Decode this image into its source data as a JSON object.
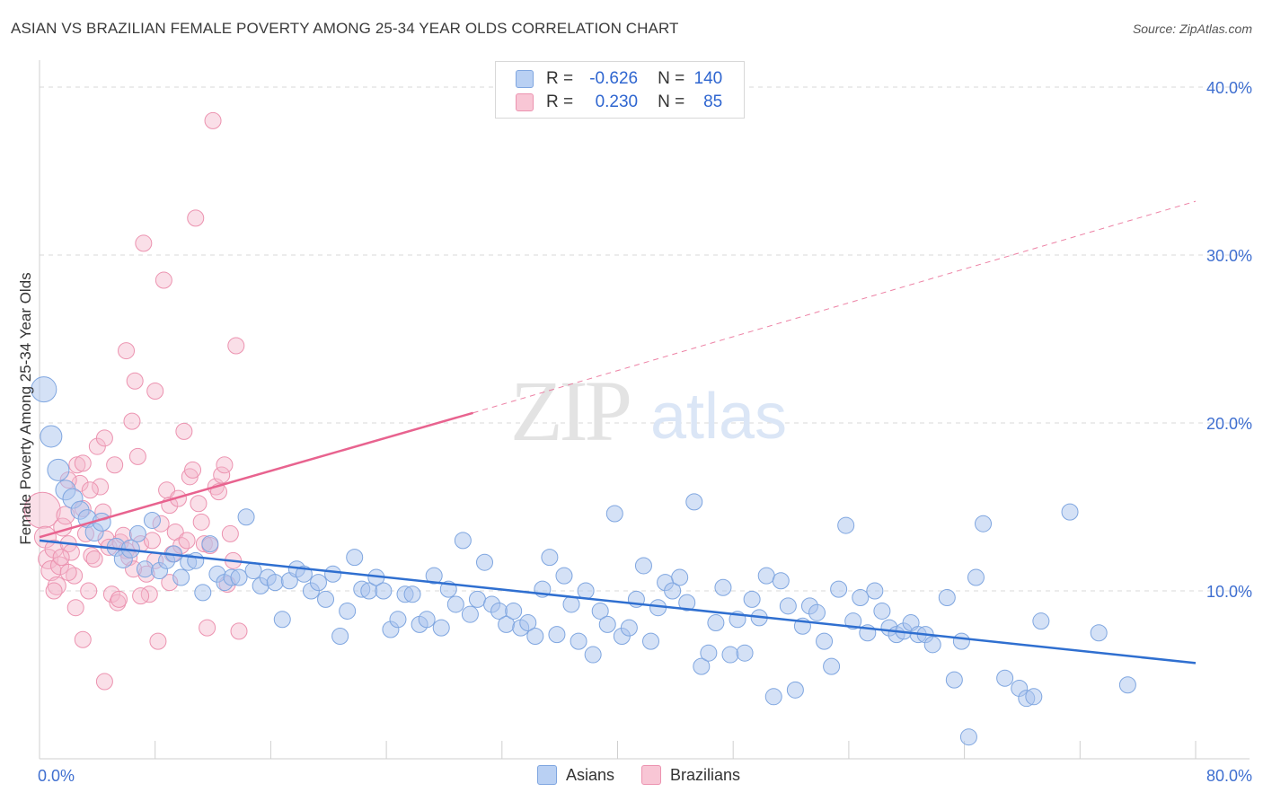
{
  "title": "ASIAN VS BRAZILIAN FEMALE POVERTY AMONG 25-34 YEAR OLDS CORRELATION CHART",
  "source": "Source: ZipAtlas.com",
  "watermark": {
    "zip": "ZIP",
    "atlas": "atlas"
  },
  "legend_top": {
    "asians": {
      "r_label": "R =",
      "r_value": "-0.626",
      "n_label": "N =",
      "n_value": "140"
    },
    "brazilians": {
      "r_label": "R =",
      "r_value": "0.230",
      "n_label": "N =",
      "n_value": "85"
    }
  },
  "legend_bottom": {
    "asians": "Asians",
    "brazilians": "Brazilians"
  },
  "colors": {
    "asian_fill": "#a9c4ee",
    "asian_stroke": "#7fa6e0",
    "asian_line": "#2f6fd0",
    "brazil_fill": "#f5b8cb",
    "brazil_stroke": "#ec93b0",
    "brazil_line": "#e8638f",
    "grid": "#d9d9d9",
    "tick_label": "#3f6fd0"
  },
  "chart_data": {
    "type": "scatter",
    "ylabel": "Female Poverty Among 25-34 Year Olds",
    "xlim": [
      0,
      80
    ],
    "ylim": [
      0,
      40
    ],
    "x_tick_labels": [
      "0.0%",
      "80.0%"
    ],
    "y_ticks": [
      10,
      20,
      30,
      40
    ],
    "y_tick_labels": [
      "10.0%",
      "20.0%",
      "30.0%",
      "40.0%"
    ],
    "grid": "horizontal dashed",
    "series": [
      {
        "name": "Asians",
        "r": -0.626,
        "n": 140,
        "trend": {
          "x": [
            0,
            80
          ],
          "y": [
            13.0,
            5.7
          ],
          "style": "solid"
        },
        "points": [
          [
            0.3,
            22.0,
            14
          ],
          [
            0.8,
            19.2,
            12
          ],
          [
            1.3,
            17.2,
            12
          ],
          [
            1.8,
            16.0,
            11
          ],
          [
            2.3,
            15.5,
            11
          ],
          [
            2.8,
            14.8,
            10
          ],
          [
            3.3,
            14.3,
            10
          ],
          [
            3.8,
            13.5,
            10
          ],
          [
            4.3,
            14.1,
            10
          ],
          [
            5.3,
            12.6,
            10
          ],
          [
            5.8,
            11.9,
            10
          ],
          [
            6.3,
            12.5,
            10
          ],
          [
            6.8,
            13.4,
            9
          ],
          [
            7.3,
            11.3,
            9
          ],
          [
            7.8,
            14.2,
            9
          ],
          [
            8.3,
            11.2,
            9
          ],
          [
            8.8,
            11.8,
            9
          ],
          [
            9.3,
            12.2,
            9
          ],
          [
            9.8,
            10.8,
            9
          ],
          [
            10.3,
            11.7,
            9
          ],
          [
            10.8,
            11.8,
            9
          ],
          [
            11.3,
            9.9,
            9
          ],
          [
            11.8,
            12.8,
            9
          ],
          [
            12.3,
            11.0,
            9
          ],
          [
            12.8,
            10.5,
            9
          ],
          [
            13.3,
            10.8,
            9
          ],
          [
            13.8,
            10.8,
            9
          ],
          [
            14.3,
            14.4,
            9
          ],
          [
            14.8,
            11.2,
            9
          ],
          [
            15.3,
            10.3,
            9
          ],
          [
            15.8,
            10.8,
            9
          ],
          [
            16.3,
            10.5,
            9
          ],
          [
            16.8,
            8.3,
            9
          ],
          [
            17.3,
            10.6,
            9
          ],
          [
            17.8,
            11.3,
            9
          ],
          [
            18.3,
            11.0,
            9
          ],
          [
            18.8,
            10.0,
            9
          ],
          [
            19.3,
            10.5,
            9
          ],
          [
            19.8,
            9.5,
            9
          ],
          [
            20.3,
            11.0,
            9
          ],
          [
            20.8,
            7.3,
            9
          ],
          [
            21.3,
            8.8,
            9
          ],
          [
            21.8,
            12.0,
            9
          ],
          [
            22.3,
            10.1,
            9
          ],
          [
            22.8,
            10.0,
            9
          ],
          [
            23.3,
            10.8,
            9
          ],
          [
            23.8,
            10.0,
            9
          ],
          [
            24.3,
            7.7,
            9
          ],
          [
            24.8,
            8.3,
            9
          ],
          [
            25.3,
            9.8,
            9
          ],
          [
            25.8,
            9.8,
            9
          ],
          [
            26.3,
            8.0,
            9
          ],
          [
            26.8,
            8.3,
            9
          ],
          [
            27.3,
            10.9,
            9
          ],
          [
            27.8,
            7.8,
            9
          ],
          [
            28.3,
            10.1,
            9
          ],
          [
            28.8,
            9.2,
            9
          ],
          [
            29.3,
            13.0,
            9
          ],
          [
            29.8,
            8.6,
            9
          ],
          [
            30.3,
            9.5,
            9
          ],
          [
            30.8,
            11.7,
            9
          ],
          [
            31.3,
            9.2,
            9
          ],
          [
            31.8,
            8.8,
            9
          ],
          [
            32.3,
            8.0,
            9
          ],
          [
            32.8,
            8.8,
            9
          ],
          [
            33.3,
            7.8,
            9
          ],
          [
            33.8,
            8.1,
            9
          ],
          [
            34.3,
            7.3,
            9
          ],
          [
            34.8,
            10.1,
            9
          ],
          [
            35.3,
            12.0,
            9
          ],
          [
            35.8,
            7.4,
            9
          ],
          [
            36.3,
            10.9,
            9
          ],
          [
            36.8,
            9.2,
            9
          ],
          [
            37.3,
            7.0,
            9
          ],
          [
            37.8,
            10.0,
            9
          ],
          [
            38.3,
            6.2,
            9
          ],
          [
            38.8,
            8.8,
            9
          ],
          [
            39.3,
            8.0,
            9
          ],
          [
            39.8,
            14.6,
            9
          ],
          [
            40.3,
            7.3,
            9
          ],
          [
            40.8,
            7.8,
            9
          ],
          [
            41.3,
            9.5,
            9
          ],
          [
            41.8,
            11.5,
            9
          ],
          [
            42.3,
            7.0,
            9
          ],
          [
            42.8,
            9.0,
            9
          ],
          [
            43.3,
            10.5,
            9
          ],
          [
            43.8,
            10.0,
            9
          ],
          [
            44.3,
            10.8,
            9
          ],
          [
            44.8,
            9.3,
            9
          ],
          [
            45.3,
            15.3,
            9
          ],
          [
            45.8,
            5.5,
            9
          ],
          [
            46.3,
            6.3,
            9
          ],
          [
            46.8,
            8.1,
            9
          ],
          [
            47.3,
            10.2,
            9
          ],
          [
            47.8,
            6.2,
            9
          ],
          [
            48.3,
            8.3,
            9
          ],
          [
            48.8,
            6.3,
            9
          ],
          [
            49.3,
            9.5,
            9
          ],
          [
            49.8,
            8.4,
            9
          ],
          [
            50.3,
            10.9,
            9
          ],
          [
            50.8,
            3.7,
            9
          ],
          [
            51.3,
            10.6,
            9
          ],
          [
            51.8,
            9.1,
            9
          ],
          [
            52.3,
            4.1,
            9
          ],
          [
            52.8,
            7.9,
            9
          ],
          [
            53.3,
            9.1,
            9
          ],
          [
            53.8,
            8.7,
            9
          ],
          [
            54.3,
            7.0,
            9
          ],
          [
            54.8,
            5.5,
            9
          ],
          [
            55.3,
            10.1,
            9
          ],
          [
            55.8,
            13.9,
            9
          ],
          [
            56.3,
            8.2,
            9
          ],
          [
            56.8,
            9.6,
            9
          ],
          [
            57.3,
            7.5,
            9
          ],
          [
            57.8,
            10.0,
            9
          ],
          [
            58.3,
            8.8,
            9
          ],
          [
            58.8,
            7.8,
            9
          ],
          [
            59.3,
            7.4,
            9
          ],
          [
            59.8,
            7.6,
            9
          ],
          [
            60.3,
            8.1,
            9
          ],
          [
            60.8,
            7.4,
            9
          ],
          [
            61.3,
            7.4,
            9
          ],
          [
            61.8,
            6.8,
            9
          ],
          [
            62.8,
            9.6,
            9
          ],
          [
            63.3,
            4.7,
            9
          ],
          [
            63.8,
            7.0,
            9
          ],
          [
            64.3,
            1.3,
            9
          ],
          [
            64.8,
            10.8,
            9
          ],
          [
            65.3,
            14.0,
            9
          ],
          [
            66.8,
            4.8,
            9
          ],
          [
            67.8,
            4.2,
            9
          ],
          [
            68.3,
            3.6,
            9
          ],
          [
            68.8,
            3.7,
            9
          ],
          [
            69.3,
            8.2,
            9
          ],
          [
            71.3,
            14.7,
            9
          ],
          [
            73.3,
            7.5,
            9
          ],
          [
            75.3,
            4.4,
            9
          ]
        ]
      },
      {
        "name": "Brazilians",
        "r": 0.23,
        "n": 85,
        "trend": {
          "x": [
            0,
            30
          ],
          "y": [
            13.2,
            20.6
          ],
          "style": "solid",
          "dashed_extension_to": [
            80,
            33.2
          ]
        },
        "points": [
          [
            0.2,
            14.8,
            20
          ],
          [
            0.4,
            13.2,
            12
          ],
          [
            0.6,
            11.9,
            11
          ],
          [
            0.8,
            11.2,
            11
          ],
          [
            1.0,
            12.5,
            10
          ],
          [
            1.2,
            10.3,
            10
          ],
          [
            1.4,
            11.5,
            10
          ],
          [
            1.6,
            13.8,
            10
          ],
          [
            1.8,
            14.5,
            10
          ],
          [
            2.0,
            12.8,
            9
          ],
          [
            2.2,
            12.3,
            9
          ],
          [
            2.4,
            10.9,
            9
          ],
          [
            2.6,
            17.5,
            9
          ],
          [
            2.8,
            16.4,
            9
          ],
          [
            3.0,
            14.9,
            9
          ],
          [
            3.2,
            13.4,
            9
          ],
          [
            3.4,
            10.0,
            9
          ],
          [
            3.6,
            12.1,
            9
          ],
          [
            3.8,
            11.9,
            9
          ],
          [
            4.0,
            18.6,
            9
          ],
          [
            4.2,
            16.2,
            9
          ],
          [
            4.4,
            14.7,
            9
          ],
          [
            4.6,
            13.1,
            9
          ],
          [
            4.8,
            12.6,
            9
          ],
          [
            5.0,
            9.8,
            9
          ],
          [
            5.2,
            17.5,
            9
          ],
          [
            5.4,
            9.3,
            9
          ],
          [
            5.6,
            12.9,
            9
          ],
          [
            5.8,
            13.3,
            9
          ],
          [
            6.0,
            12.4,
            9
          ],
          [
            6.2,
            12.0,
            9
          ],
          [
            6.4,
            20.1,
            9
          ],
          [
            6.6,
            22.5,
            9
          ],
          [
            6.8,
            18.0,
            9
          ],
          [
            7.0,
            12.8,
            9
          ],
          [
            7.2,
            30.7,
            9
          ],
          [
            7.4,
            11.0,
            9
          ],
          [
            7.6,
            9.8,
            9
          ],
          [
            7.8,
            13.0,
            9
          ],
          [
            8.0,
            21.9,
            9
          ],
          [
            8.2,
            7.0,
            9
          ],
          [
            8.4,
            14.0,
            9
          ],
          [
            8.6,
            28.5,
            9
          ],
          [
            8.8,
            16.0,
            9
          ],
          [
            9.0,
            15.1,
            9
          ],
          [
            9.2,
            12.2,
            9
          ],
          [
            9.4,
            13.5,
            9
          ],
          [
            9.6,
            15.5,
            9
          ],
          [
            9.8,
            12.7,
            9
          ],
          [
            10.0,
            19.5,
            9
          ],
          [
            10.2,
            13.0,
            9
          ],
          [
            10.4,
            16.8,
            9
          ],
          [
            10.6,
            17.2,
            9
          ],
          [
            10.8,
            32.2,
            9
          ],
          [
            11.0,
            15.2,
            9
          ],
          [
            11.2,
            14.1,
            9
          ],
          [
            11.4,
            12.8,
            9
          ],
          [
            11.6,
            7.8,
            9
          ],
          [
            11.8,
            12.7,
            9
          ],
          [
            12.0,
            38.0,
            9
          ],
          [
            12.2,
            16.2,
            9
          ],
          [
            12.4,
            15.9,
            9
          ],
          [
            12.6,
            16.9,
            9
          ],
          [
            12.8,
            17.5,
            9
          ],
          [
            13.0,
            10.4,
            9
          ],
          [
            13.2,
            13.4,
            9
          ],
          [
            13.4,
            11.8,
            9
          ],
          [
            13.6,
            24.6,
            9
          ],
          [
            13.8,
            7.6,
            9
          ],
          [
            2.0,
            11.1,
            9
          ],
          [
            2.5,
            9.0,
            9
          ],
          [
            3.0,
            7.1,
            9
          ],
          [
            4.5,
            4.6,
            9
          ],
          [
            5.5,
            9.5,
            9
          ],
          [
            6.5,
            11.3,
            9
          ],
          [
            7.0,
            9.7,
            9
          ],
          [
            8.0,
            11.8,
            9
          ],
          [
            9.0,
            10.5,
            9
          ],
          [
            1.5,
            12.0,
            9
          ],
          [
            3.5,
            16.0,
            9
          ],
          [
            4.5,
            19.1,
            9
          ],
          [
            6.0,
            24.3,
            9
          ],
          [
            1.0,
            10.0,
            9
          ],
          [
            2.0,
            16.6,
            9
          ],
          [
            3.0,
            17.6,
            9
          ]
        ]
      }
    ]
  }
}
